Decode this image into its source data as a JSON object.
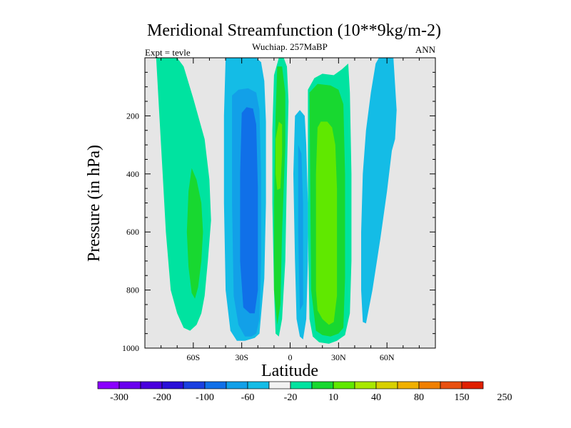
{
  "chart_data": {
    "type": "contour",
    "title": "Meridional Streamfunction (10**9kg/m-2)",
    "subtitle_center": "Wuchiap. 257MaBP",
    "subtitle_left": "Expt = tevle",
    "subtitle_right": "ANN",
    "xlabel": "Latitude",
    "ylabel": "Pressure (in hPa)",
    "xlim": [
      -90,
      90
    ],
    "ylim": [
      1000,
      0
    ],
    "x_ticks": [
      {
        "value": -60,
        "label": "60S"
      },
      {
        "value": -30,
        "label": "30S"
      },
      {
        "value": 0,
        "label": "0"
      },
      {
        "value": 30,
        "label": "30N"
      },
      {
        "value": 60,
        "label": "60N"
      }
    ],
    "y_ticks": [
      {
        "value": 200,
        "label": "200"
      },
      {
        "value": 400,
        "label": "400"
      },
      {
        "value": 600,
        "label": "600"
      },
      {
        "value": 800,
        "label": "800"
      },
      {
        "value": 1000,
        "label": "1000"
      }
    ],
    "background_color": "#e6e6e6",
    "colorbar": {
      "colors": [
        "#8b00ff",
        "#6a00ee",
        "#4a00dd",
        "#2a10d8",
        "#1a40e0",
        "#1070e8",
        "#12a0e8",
        "#14bce6",
        "#f2f2f2",
        "#00e3a0",
        "#18d830",
        "#60e800",
        "#a8e800",
        "#d8d000",
        "#f0b000",
        "#f08000",
        "#e85010",
        "#e02000"
      ],
      "labels": [
        "-300",
        "-200",
        "-100",
        "-60",
        "-20",
        "10",
        "40",
        "80",
        "150",
        "250"
      ]
    },
    "regions": [
      {
        "name": "sh-outer-cell-level-10",
        "level": 10,
        "color": "#00e3a0",
        "x": [
          -83,
          -78,
          -74,
          -70,
          -66,
          -60,
          -53,
          -50,
          -49,
          -51,
          -53,
          -55,
          -58,
          -62,
          -66,
          -70,
          -74,
          -77,
          -79,
          -81,
          -83
        ],
        "y": [
          0,
          0,
          0,
          0,
          30,
          140,
          280,
          420,
          560,
          700,
          820,
          880,
          920,
          940,
          930,
          880,
          800,
          600,
          400,
          200,
          0
        ]
      },
      {
        "name": "sh-outer-cell-level-40",
        "level": 40,
        "color": "#18d830",
        "x": [
          -61,
          -58,
          -55,
          -54,
          -55,
          -57,
          -59,
          -61,
          -63,
          -64,
          -63,
          -61
        ],
        "y": [
          380,
          420,
          500,
          600,
          700,
          790,
          830,
          810,
          720,
          600,
          460,
          380
        ]
      },
      {
        "name": "sh-cell-level-m10",
        "level": -10,
        "color": "#14bce6",
        "x": [
          -40,
          -35,
          -28,
          -21,
          -18,
          -16,
          -15,
          -15,
          -16,
          -19,
          -22,
          -28,
          -33,
          -37,
          -40,
          -41,
          -41,
          -40
        ],
        "y": [
          0,
          0,
          0,
          0,
          15,
          80,
          220,
          500,
          760,
          950,
          965,
          975,
          975,
          940,
          800,
          500,
          200,
          0
        ]
      },
      {
        "name": "sh-cell-level-m20",
        "level": -20,
        "color": "#12a0e8",
        "x": [
          -36,
          -32,
          -26,
          -21,
          -19,
          -18,
          -18,
          -19,
          -21,
          -24,
          -28,
          -32,
          -35,
          -36,
          -36
        ],
        "y": [
          130,
          110,
          105,
          120,
          180,
          400,
          700,
          900,
          950,
          960,
          960,
          920,
          820,
          500,
          130
        ]
      },
      {
        "name": "sh-cell-level-m60",
        "level": -60,
        "color": "#1070e8",
        "x": [
          -30,
          -27,
          -23,
          -21,
          -20,
          -20,
          -22,
          -25,
          -29,
          -31,
          -31,
          -30
        ],
        "y": [
          190,
          170,
          175,
          230,
          450,
          800,
          880,
          880,
          860,
          700,
          400,
          190
        ]
      },
      {
        "name": "eq-cell-level-10",
        "level": 10,
        "color": "#00e3a0",
        "x": [
          -7,
          -4,
          -2,
          -1,
          -2,
          -3,
          -5,
          -7,
          -9,
          -10,
          -11,
          -11,
          -10,
          -7
        ],
        "y": [
          0,
          0,
          30,
          150,
          400,
          700,
          900,
          960,
          950,
          800,
          500,
          250,
          60,
          0
        ]
      },
      {
        "name": "eq-cell-level-40",
        "level": 40,
        "color": "#18d830",
        "x": [
          -8,
          -5,
          -3,
          -3,
          -5,
          -6,
          -8,
          -10,
          -10,
          -9,
          -8
        ],
        "y": [
          30,
          30,
          120,
          300,
          600,
          850,
          920,
          800,
          500,
          200,
          30
        ]
      },
      {
        "name": "eq-cell-level-80",
        "level": 80,
        "color": "#60e800",
        "x": [
          -7,
          -5,
          -5,
          -6,
          -8,
          -9,
          -9,
          -7
        ],
        "y": [
          220,
          230,
          330,
          450,
          455,
          400,
          280,
          220
        ]
      },
      {
        "name": "eq-cell-level-m10",
        "level": -10,
        "color": "#14bce6",
        "x": [
          3,
          6,
          9,
          10,
          11,
          11,
          10,
          8,
          6,
          4,
          3,
          2,
          3
        ],
        "y": [
          200,
          180,
          200,
          300,
          500,
          700,
          900,
          970,
          960,
          900,
          700,
          400,
          200
        ]
      },
      {
        "name": "eq-cell-level-m20",
        "level": -20,
        "color": "#12a0e8",
        "x": [
          5,
          7,
          8,
          8,
          6,
          5,
          5
        ],
        "y": [
          300,
          330,
          500,
          850,
          870,
          600,
          300
        ]
      },
      {
        "name": "nh-cell-level-10",
        "level": 10,
        "color": "#00e3a0",
        "x": [
          11,
          15,
          20,
          27,
          32,
          36,
          37,
          38,
          38,
          37,
          34,
          29,
          24,
          18,
          14,
          12,
          11,
          11
        ],
        "y": [
          110,
          70,
          55,
          60,
          40,
          20,
          120,
          400,
          700,
          880,
          955,
          975,
          985,
          980,
          960,
          900,
          600,
          110
        ]
      },
      {
        "name": "nh-cell-level-40",
        "level": 40,
        "color": "#18d830",
        "x": [
          12,
          17,
          25,
          30,
          33,
          34,
          34,
          33,
          30,
          25,
          20,
          16,
          13,
          12
        ],
        "y": [
          120,
          90,
          95,
          110,
          160,
          400,
          760,
          930,
          950,
          960,
          955,
          940,
          800,
          120
        ]
      },
      {
        "name": "nh-cell-level-80",
        "level": 80,
        "color": "#60e800",
        "x": [
          17,
          19,
          23,
          26,
          28,
          29,
          29,
          27,
          24,
          20,
          17,
          16,
          16,
          17
        ],
        "y": [
          240,
          220,
          220,
          240,
          300,
          450,
          820,
          910,
          920,
          900,
          870,
          800,
          400,
          240
        ]
      },
      {
        "name": "nh-outer-cell-level-m10",
        "level": -10,
        "color": "#14bce6",
        "x": [
          55,
          60,
          64,
          66,
          65,
          63,
          60,
          56,
          51,
          47,
          45,
          44,
          44,
          45,
          47,
          50,
          53,
          55
        ],
        "y": [
          0,
          0,
          0,
          180,
          280,
          320,
          460,
          620,
          800,
          915,
          910,
          800,
          600,
          400,
          250,
          120,
          20,
          0
        ]
      }
    ]
  }
}
